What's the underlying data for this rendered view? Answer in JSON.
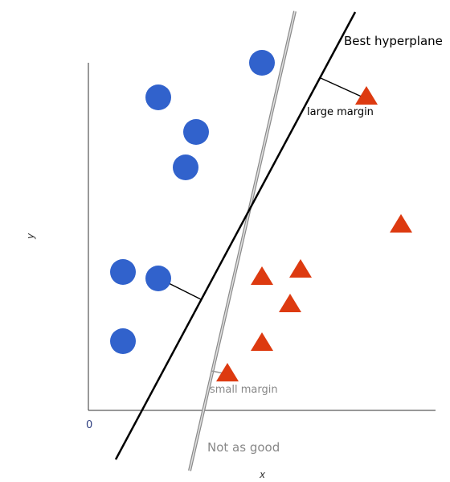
{
  "labels": {
    "best": "Best hyperplane",
    "not_good": "Not as good",
    "large_margin": "large margin",
    "small_margin": "small margin",
    "origin": "0",
    "x_axis": "x",
    "y_axis": "y"
  },
  "colors": {
    "circle": "#3162cc",
    "triangle": "#dd3a10",
    "best_line": "#000000",
    "alt_line": "#9e9e9e",
    "axis": "#333333",
    "origin_text": "#2f3f80",
    "muted_text": "#888888"
  },
  "markers": {
    "circle": "circle",
    "triangle": "triangle"
  }
}
